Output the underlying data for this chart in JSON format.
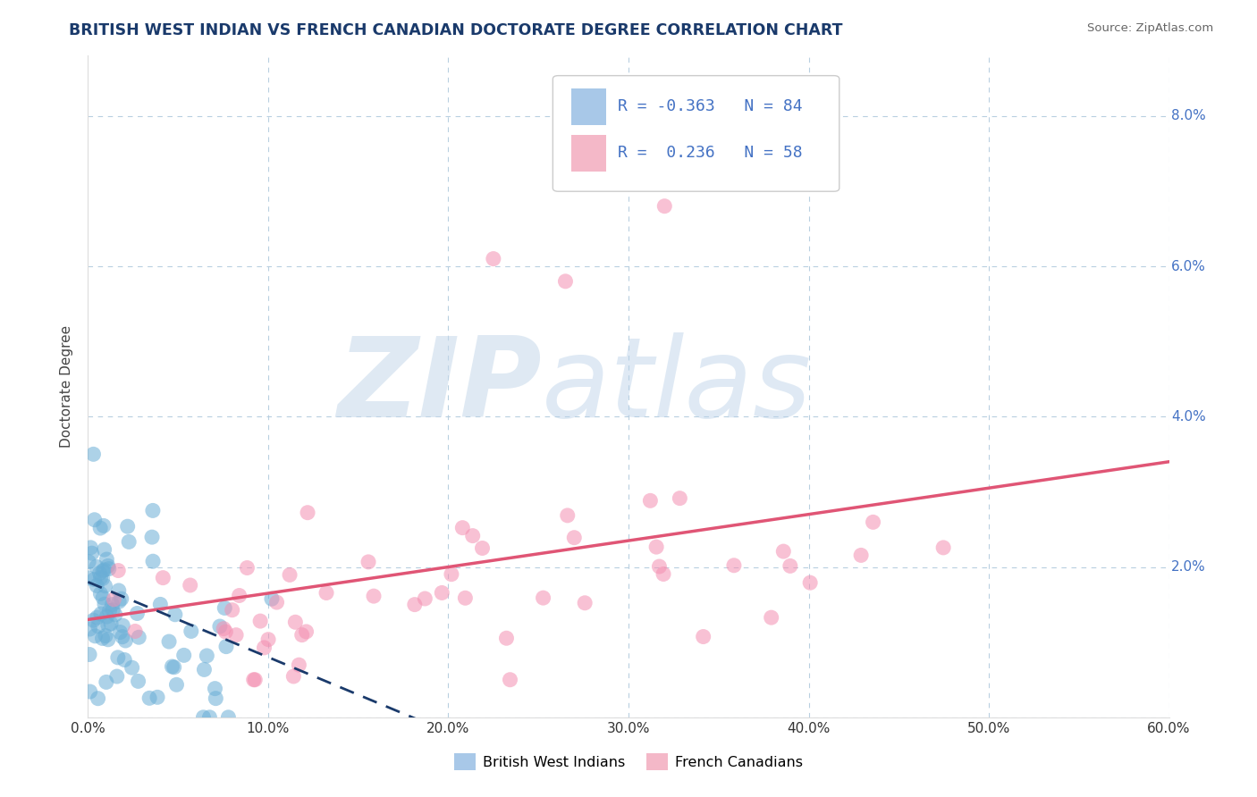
{
  "title": "BRITISH WEST INDIAN VS FRENCH CANADIAN DOCTORATE DEGREE CORRELATION CHART",
  "source": "Source: ZipAtlas.com",
  "ylabel": "Doctorate Degree",
  "watermark_zip": "ZIP",
  "watermark_atlas": "atlas",
  "xlim": [
    0.0,
    0.6
  ],
  "ylim": [
    0.0,
    0.088
  ],
  "xticks": [
    0.0,
    0.1,
    0.2,
    0.3,
    0.4,
    0.5,
    0.6
  ],
  "yticks": [
    0.0,
    0.02,
    0.04,
    0.06,
    0.08
  ],
  "xtick_labels": [
    "0.0%",
    "10.0%",
    "20.0%",
    "30.0%",
    "40.0%",
    "50.0%",
    "60.0%"
  ],
  "ytick_labels_right": [
    "8.0%",
    "6.0%",
    "4.0%",
    "2.0%",
    ""
  ],
  "legend_bottom": [
    "British West Indians",
    "French Canadians"
  ],
  "blue_color": "#6aaed6",
  "pink_color": "#f48fb1",
  "blue_legend_color": "#a8c8e8",
  "pink_legend_color": "#f4b8c8",
  "blue_line_color": "#1a3a6b",
  "pink_line_color": "#e05575",
  "blue_R": -0.363,
  "blue_N": 84,
  "pink_R": 0.236,
  "pink_N": 58,
  "background_color": "#ffffff",
  "grid_color": "#b8cfe0",
  "title_color": "#1a3a6b",
  "source_color": "#666666",
  "tick_label_color": "#4472c4"
}
